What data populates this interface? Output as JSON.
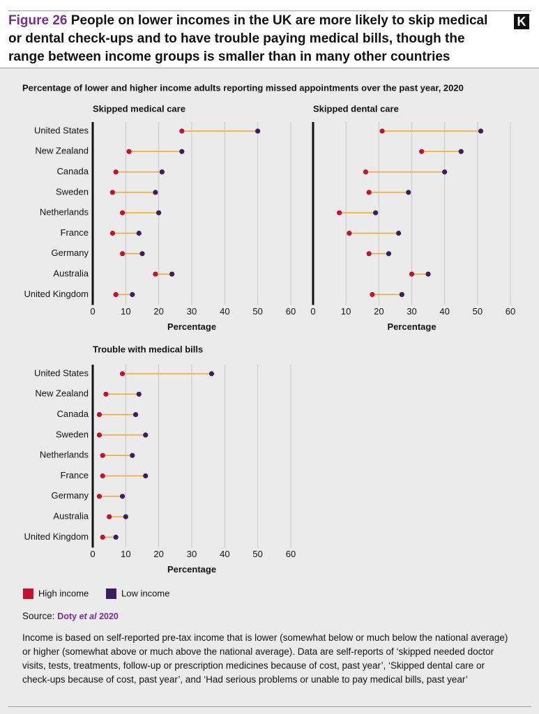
{
  "header": {
    "figure_label": "Figure 26",
    "title": "People on lower incomes in the UK are more likely to skip medical or dental check-ups and to have trouble paying medical bills, though the range between income groups is smaller than in many other countries",
    "subtitle": "Percentage of lower and higher income adults reporting missed appointments over the past year, 2020"
  },
  "chart_data": [
    {
      "type": "dumbbell",
      "title": "Skipped medical care",
      "categories": [
        "United States",
        "New Zealand",
        "Canada",
        "Sweden",
        "Netherlands",
        "France",
        "Germany",
        "Australia",
        "United Kingdom"
      ],
      "series": [
        {
          "name": "High income",
          "color": "#c8102e",
          "values": [
            27,
            11,
            7,
            6,
            9,
            6,
            9,
            19,
            7
          ]
        },
        {
          "name": "Low income",
          "color": "#3a1f5d",
          "values": [
            50,
            27,
            21,
            19,
            20,
            14,
            15,
            24,
            12
          ]
        }
      ],
      "line_color": "#f5a623",
      "xlim": [
        0,
        60
      ],
      "xticks": [
        0,
        10,
        20,
        30,
        40,
        50,
        60
      ],
      "xlabel": "Percentage",
      "grid": true
    },
    {
      "type": "dumbbell",
      "title": "Skipped dental care",
      "sharey": true,
      "series": [
        {
          "name": "High income",
          "color": "#c8102e",
          "values": [
            21,
            33,
            16,
            17,
            8,
            11,
            17,
            30,
            18
          ]
        },
        {
          "name": "Low income",
          "color": "#3a1f5d",
          "values": [
            51,
            45,
            40,
            29,
            19,
            26,
            23,
            35,
            27
          ]
        }
      ],
      "line_color": "#f5a623",
      "xlim": [
        0,
        60
      ],
      "xticks": [
        0,
        10,
        20,
        30,
        40,
        50,
        60
      ],
      "xlabel": "Percentage",
      "grid": true
    },
    {
      "type": "dumbbell",
      "title": "Trouble with medical bills",
      "categories": [
        "United States",
        "New Zealand",
        "Canada",
        "Sweden",
        "Netherlands",
        "France",
        "Germany",
        "Australia",
        "United Kingdom"
      ],
      "series": [
        {
          "name": "High income",
          "color": "#c8102e",
          "values": [
            9,
            4,
            2,
            2,
            3,
            3,
            2,
            5,
            3
          ]
        },
        {
          "name": "Low income",
          "color": "#3a1f5d",
          "values": [
            36,
            14,
            13,
            16,
            12,
            16,
            9,
            10,
            7
          ]
        }
      ],
      "line_color": "#f5a623",
      "xlim": [
        0,
        60
      ],
      "xticks": [
        0,
        10,
        20,
        30,
        40,
        50,
        60
      ],
      "xlabel": "Percentage",
      "grid": true
    }
  ],
  "source": {
    "label": "Source:",
    "author": "Doty",
    "etal": "et al",
    "year": "2020"
  },
  "notes": "Income is based on self-reported pre-tax income that is lower (somewhat below or much below the national average) or higher (somewhat above or much above the national average). Data are self-reports of ‘skipped needed doctor visits, tests, treatments, follow-up or prescription medicines because of cost, past year’, ‘Skipped dental care or check-ups because of cost, past year’, and ‘Had serious problems or unable to pay medical bills, past year’"
}
